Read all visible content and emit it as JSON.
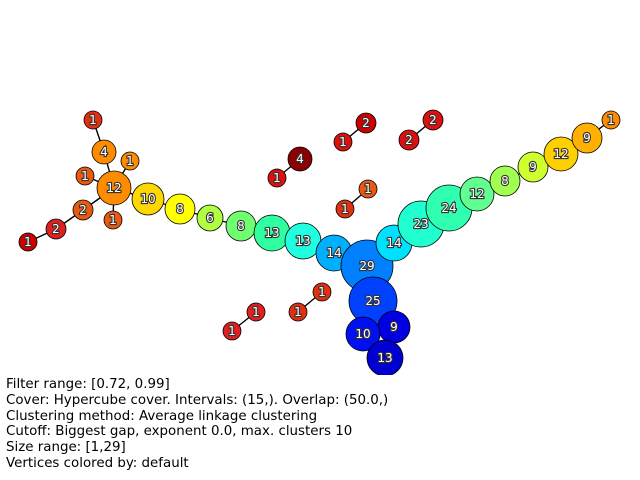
{
  "graph": {
    "nodes": [
      {
        "id": "n1",
        "label": "1",
        "color": "#e03010"
      },
      {
        "id": "n2",
        "label": "4",
        "color": "#ff8c00"
      },
      {
        "id": "n3",
        "label": "1",
        "color": "#ff8c00"
      },
      {
        "id": "n4",
        "label": "1",
        "color": "#e85a10"
      },
      {
        "id": "n5",
        "label": "12",
        "color": "#ff8c00"
      },
      {
        "id": "n6",
        "label": "1",
        "color": "#e85a10"
      },
      {
        "id": "n7",
        "label": "2",
        "color": "#e85a10"
      },
      {
        "id": "n8",
        "label": "2",
        "color": "#e02020"
      },
      {
        "id": "n9",
        "label": "1",
        "color": "#cc0000"
      },
      {
        "id": "n10",
        "label": "10",
        "color": "#ffd700"
      },
      {
        "id": "n11",
        "label": "8",
        "color": "#ffff00"
      },
      {
        "id": "n12",
        "label": "6",
        "color": "#b0ff40"
      },
      {
        "id": "n13",
        "label": "8",
        "color": "#70ff70"
      },
      {
        "id": "n14",
        "label": "13",
        "color": "#30ffa0"
      },
      {
        "id": "n15",
        "label": "13",
        "color": "#20ffe0"
      },
      {
        "id": "n16",
        "label": "14",
        "color": "#00b0ff"
      },
      {
        "id": "n17",
        "label": "29",
        "color": "#0080ff"
      },
      {
        "id": "n18",
        "label": "14",
        "color": "#00e0ff"
      },
      {
        "id": "n19",
        "label": "23",
        "color": "#20ffd0"
      },
      {
        "id": "n20",
        "label": "24",
        "color": "#30ffb0"
      },
      {
        "id": "n21",
        "label": "12",
        "color": "#60ff90"
      },
      {
        "id": "n22",
        "label": "8",
        "color": "#a0ff50"
      },
      {
        "id": "n23",
        "label": "9",
        "color": "#d0ff30"
      },
      {
        "id": "n24",
        "label": "12",
        "color": "#ffd000"
      },
      {
        "id": "n25",
        "label": "9",
        "color": "#ffb000"
      },
      {
        "id": "n26",
        "label": "1",
        "color": "#ff8c00"
      },
      {
        "id": "n27",
        "label": "25",
        "color": "#0040ff"
      },
      {
        "id": "n28",
        "label": "9",
        "color": "#0000e0"
      },
      {
        "id": "n29",
        "label": "10",
        "color": "#0010f0"
      },
      {
        "id": "n30",
        "label": "13",
        "color": "#0000d0"
      },
      {
        "id": "n31",
        "label": "4",
        "color": "#8b0000"
      },
      {
        "id": "n32",
        "label": "1",
        "color": "#dd1010"
      },
      {
        "id": "n33",
        "label": "2",
        "color": "#cc0000"
      },
      {
        "id": "n34",
        "label": "1",
        "color": "#dd1010"
      },
      {
        "id": "n35",
        "label": "2",
        "color": "#dd1010"
      },
      {
        "id": "n36",
        "label": "2",
        "color": "#dd1010"
      },
      {
        "id": "n37",
        "label": "1",
        "color": "#e85a10"
      },
      {
        "id": "n38",
        "label": "1",
        "color": "#e03010"
      },
      {
        "id": "n39",
        "label": "1",
        "color": "#e03010"
      },
      {
        "id": "n40",
        "label": "1",
        "color": "#e03010"
      },
      {
        "id": "n41",
        "label": "1",
        "color": "#e02020"
      },
      {
        "id": "n42",
        "label": "1",
        "color": "#e02020"
      }
    ],
    "edges": [
      [
        "n1",
        "n2"
      ],
      [
        "n2",
        "n5"
      ],
      [
        "n3",
        "n5"
      ],
      [
        "n4",
        "n5"
      ],
      [
        "n6",
        "n5"
      ],
      [
        "n7",
        "n5"
      ],
      [
        "n7",
        "n8"
      ],
      [
        "n8",
        "n9"
      ],
      [
        "n5",
        "n10"
      ],
      [
        "n10",
        "n11"
      ],
      [
        "n11",
        "n12"
      ],
      [
        "n12",
        "n13"
      ],
      [
        "n13",
        "n14"
      ],
      [
        "n14",
        "n15"
      ],
      [
        "n15",
        "n16"
      ],
      [
        "n16",
        "n17"
      ],
      [
        "n17",
        "n18"
      ],
      [
        "n18",
        "n19"
      ],
      [
        "n19",
        "n20"
      ],
      [
        "n20",
        "n21"
      ],
      [
        "n21",
        "n22"
      ],
      [
        "n22",
        "n23"
      ],
      [
        "n23",
        "n24"
      ],
      [
        "n24",
        "n25"
      ],
      [
        "n25",
        "n26"
      ],
      [
        "n17",
        "n27"
      ],
      [
        "n27",
        "n28"
      ],
      [
        "n27",
        "n29"
      ],
      [
        "n28",
        "n30"
      ],
      [
        "n29",
        "n30"
      ],
      [
        "n31",
        "n32"
      ],
      [
        "n33",
        "n34"
      ],
      [
        "n35",
        "n36"
      ],
      [
        "n37",
        "n38"
      ],
      [
        "n39",
        "n40"
      ],
      [
        "n41",
        "n42"
      ]
    ]
  },
  "info": {
    "filter_range": "Filter range: [0.72, 0.99]",
    "cover": "Cover: Hypercube cover. Intervals: (15,). Overlap: (50.0,)",
    "clustering": "Clustering method: Average linkage clustering",
    "cutoff": "Cutoff: Biggest gap, exponent 0.0, max. clusters 10",
    "size_range": "Size range: [1,29]",
    "colored_by": "Vertices colored by: default"
  }
}
